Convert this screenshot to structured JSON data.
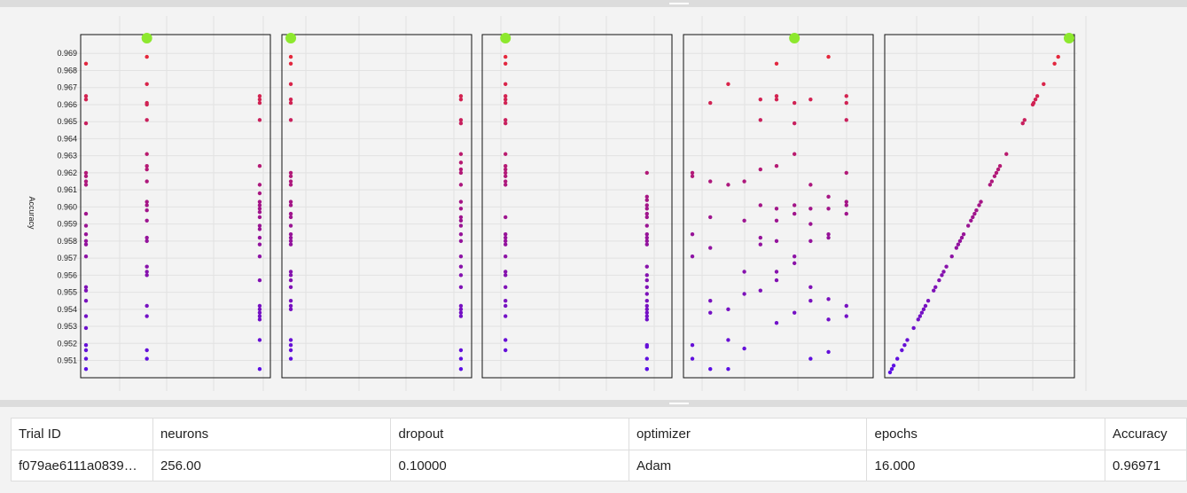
{
  "chart_data": {
    "type": "scatter",
    "ylabel": "Accuracy",
    "ylim": [
      0.9503,
      0.97
    ],
    "yticks": [
      "0.951",
      "0.952",
      "0.953",
      "0.954",
      "0.955",
      "0.956",
      "0.957",
      "0.958",
      "0.959",
      "0.960",
      "0.961",
      "0.962",
      "0.963",
      "0.964",
      "0.965",
      "0.966",
      "0.967",
      "0.968",
      "0.969"
    ],
    "color_scale": {
      "low": "#5a0ee6",
      "mid": "#a0148c",
      "high": "#e6283a"
    },
    "best_point_color": "#8de82e",
    "best_accuracy": 0.96971,
    "accuracy_values": [
      0.9688,
      0.9684,
      0.9672,
      0.9665,
      0.9663,
      0.9661,
      0.966,
      0.9651,
      0.9649,
      0.9631,
      0.9624,
      0.9622,
      0.962,
      0.9618,
      0.9615,
      0.9613,
      0.9603,
      0.9601,
      0.9598,
      0.9596,
      0.9594,
      0.9592,
      0.9589,
      0.9584,
      0.9582,
      0.958,
      0.9578,
      0.9576,
      0.9571,
      0.9565,
      0.9562,
      0.956,
      0.9557,
      0.9553,
      0.9551,
      0.9545,
      0.9542,
      0.954,
      0.9538,
      0.9536,
      0.9534,
      0.9529,
      0.9522,
      0.9519,
      0.9516,
      0.9511,
      0.9507,
      0.9505,
      0.9503
    ],
    "panels": [
      {
        "param": "neurons",
        "points": [
          [
            0.0,
            0.9684
          ],
          [
            0.0,
            0.9665
          ],
          [
            0.0,
            0.9663
          ],
          [
            0.0,
            0.9649
          ],
          [
            0.0,
            0.962
          ],
          [
            0.0,
            0.9618
          ],
          [
            0.0,
            0.9615
          ],
          [
            0.0,
            0.9613
          ],
          [
            0.0,
            0.9596
          ],
          [
            0.0,
            0.9589
          ],
          [
            0.0,
            0.9584
          ],
          [
            0.0,
            0.958
          ],
          [
            0.0,
            0.9578
          ],
          [
            0.0,
            0.9571
          ],
          [
            0.0,
            0.9553
          ],
          [
            0.0,
            0.9551
          ],
          [
            0.0,
            0.9545
          ],
          [
            0.0,
            0.9536
          ],
          [
            0.0,
            0.9529
          ],
          [
            0.0,
            0.9519
          ],
          [
            0.0,
            0.9516
          ],
          [
            0.0,
            0.9511
          ],
          [
            0.0,
            0.9505
          ],
          [
            0.34,
            0.9688
          ],
          [
            0.34,
            0.9672
          ],
          [
            0.34,
            0.9661
          ],
          [
            0.34,
            0.966
          ],
          [
            0.34,
            0.9651
          ],
          [
            0.34,
            0.9631
          ],
          [
            0.34,
            0.9624
          ],
          [
            0.34,
            0.9622
          ],
          [
            0.34,
            0.9615
          ],
          [
            0.34,
            0.9603
          ],
          [
            0.34,
            0.9601
          ],
          [
            0.34,
            0.9598
          ],
          [
            0.34,
            0.9592
          ],
          [
            0.34,
            0.9582
          ],
          [
            0.34,
            0.958
          ],
          [
            0.34,
            0.9565
          ],
          [
            0.34,
            0.9562
          ],
          [
            0.34,
            0.956
          ],
          [
            0.34,
            0.9542
          ],
          [
            0.34,
            0.9536
          ],
          [
            0.34,
            0.9516
          ],
          [
            0.34,
            0.9511
          ],
          [
            0.97,
            0.9665
          ],
          [
            0.97,
            0.9663
          ],
          [
            0.97,
            0.9661
          ],
          [
            0.97,
            0.9651
          ],
          [
            0.97,
            0.9624
          ],
          [
            0.97,
            0.9613
          ],
          [
            0.97,
            0.9608
          ],
          [
            0.97,
            0.9603
          ],
          [
            0.97,
            0.9601
          ],
          [
            0.97,
            0.9599
          ],
          [
            0.97,
            0.9597
          ],
          [
            0.97,
            0.9594
          ],
          [
            0.97,
            0.9589
          ],
          [
            0.97,
            0.9587
          ],
          [
            0.97,
            0.9582
          ],
          [
            0.97,
            0.9578
          ],
          [
            0.97,
            0.9571
          ],
          [
            0.97,
            0.9557
          ],
          [
            0.97,
            0.9542
          ],
          [
            0.97,
            0.954
          ],
          [
            0.97,
            0.9538
          ],
          [
            0.97,
            0.9536
          ],
          [
            0.97,
            0.9534
          ],
          [
            0.97,
            0.9522
          ],
          [
            0.97,
            0.9505
          ]
        ],
        "best": [
          0.34,
          0.96971
        ]
      },
      {
        "param": "dropout",
        "points": [
          [
            0.02,
            0.9688
          ],
          [
            0.02,
            0.9684
          ],
          [
            0.02,
            0.9672
          ],
          [
            0.02,
            0.9663
          ],
          [
            0.02,
            0.9661
          ],
          [
            0.02,
            0.9651
          ],
          [
            0.02,
            0.962
          ],
          [
            0.02,
            0.9618
          ],
          [
            0.02,
            0.9615
          ],
          [
            0.02,
            0.9613
          ],
          [
            0.02,
            0.9603
          ],
          [
            0.02,
            0.9601
          ],
          [
            0.02,
            0.9596
          ],
          [
            0.02,
            0.9594
          ],
          [
            0.02,
            0.9589
          ],
          [
            0.02,
            0.9584
          ],
          [
            0.02,
            0.9582
          ],
          [
            0.02,
            0.958
          ],
          [
            0.02,
            0.9578
          ],
          [
            0.02,
            0.9562
          ],
          [
            0.02,
            0.956
          ],
          [
            0.02,
            0.9557
          ],
          [
            0.02,
            0.9553
          ],
          [
            0.02,
            0.9545
          ],
          [
            0.02,
            0.9542
          ],
          [
            0.02,
            0.954
          ],
          [
            0.02,
            0.9522
          ],
          [
            0.02,
            0.9519
          ],
          [
            0.02,
            0.9516
          ],
          [
            0.02,
            0.9511
          ],
          [
            0.97,
            0.9665
          ],
          [
            0.97,
            0.9663
          ],
          [
            0.97,
            0.9651
          ],
          [
            0.97,
            0.9649
          ],
          [
            0.97,
            0.9631
          ],
          [
            0.97,
            0.9626
          ],
          [
            0.97,
            0.9622
          ],
          [
            0.97,
            0.962
          ],
          [
            0.97,
            0.9613
          ],
          [
            0.97,
            0.9603
          ],
          [
            0.97,
            0.9599
          ],
          [
            0.97,
            0.9594
          ],
          [
            0.97,
            0.9592
          ],
          [
            0.97,
            0.9589
          ],
          [
            0.97,
            0.9584
          ],
          [
            0.97,
            0.958
          ],
          [
            0.97,
            0.9571
          ],
          [
            0.97,
            0.9565
          ],
          [
            0.97,
            0.956
          ],
          [
            0.97,
            0.9553
          ],
          [
            0.97,
            0.9542
          ],
          [
            0.97,
            0.954
          ],
          [
            0.97,
            0.9538
          ],
          [
            0.97,
            0.9536
          ],
          [
            0.97,
            0.9516
          ],
          [
            0.97,
            0.9511
          ],
          [
            0.97,
            0.9505
          ]
        ],
        "best": [
          0.02,
          0.96971
        ]
      },
      {
        "param": "optimizer",
        "points": [
          [
            0.1,
            0.9688
          ],
          [
            0.1,
            0.9684
          ],
          [
            0.1,
            0.9672
          ],
          [
            0.1,
            0.9665
          ],
          [
            0.1,
            0.9663
          ],
          [
            0.1,
            0.9661
          ],
          [
            0.1,
            0.9651
          ],
          [
            0.1,
            0.9649
          ],
          [
            0.1,
            0.9631
          ],
          [
            0.1,
            0.9624
          ],
          [
            0.1,
            0.9622
          ],
          [
            0.1,
            0.962
          ],
          [
            0.1,
            0.9618
          ],
          [
            0.1,
            0.9615
          ],
          [
            0.1,
            0.9613
          ],
          [
            0.1,
            0.9594
          ],
          [
            0.1,
            0.9584
          ],
          [
            0.1,
            0.9582
          ],
          [
            0.1,
            0.958
          ],
          [
            0.1,
            0.9578
          ],
          [
            0.1,
            0.9571
          ],
          [
            0.1,
            0.9562
          ],
          [
            0.1,
            0.956
          ],
          [
            0.1,
            0.9553
          ],
          [
            0.1,
            0.9545
          ],
          [
            0.1,
            0.9542
          ],
          [
            0.1,
            0.9536
          ],
          [
            0.1,
            0.9522
          ],
          [
            0.1,
            0.9516
          ],
          [
            0.89,
            0.962
          ],
          [
            0.89,
            0.9606
          ],
          [
            0.89,
            0.9604
          ],
          [
            0.89,
            0.9601
          ],
          [
            0.89,
            0.9599
          ],
          [
            0.89,
            0.9596
          ],
          [
            0.89,
            0.9594
          ],
          [
            0.89,
            0.9589
          ],
          [
            0.89,
            0.9584
          ],
          [
            0.89,
            0.9582
          ],
          [
            0.89,
            0.958
          ],
          [
            0.89,
            0.9578
          ],
          [
            0.89,
            0.9565
          ],
          [
            0.89,
            0.956
          ],
          [
            0.89,
            0.9557
          ],
          [
            0.89,
            0.9553
          ],
          [
            0.89,
            0.9549
          ],
          [
            0.89,
            0.9545
          ],
          [
            0.89,
            0.9542
          ],
          [
            0.89,
            0.954
          ],
          [
            0.89,
            0.9538
          ],
          [
            0.89,
            0.9536
          ],
          [
            0.89,
            0.9534
          ],
          [
            0.89,
            0.9519
          ],
          [
            0.89,
            0.9518
          ],
          [
            0.89,
            0.9511
          ],
          [
            0.89,
            0.9505
          ],
          [
            0.89,
            0.9505
          ]
        ],
        "best": [
          0.1,
          0.96971
        ]
      },
      {
        "param": "epochs",
        "points": [
          [
            0.02,
            0.962
          ],
          [
            0.02,
            0.9618
          ],
          [
            0.02,
            0.9584
          ],
          [
            0.02,
            0.9571
          ],
          [
            0.02,
            0.9519
          ],
          [
            0.02,
            0.9511
          ],
          [
            0.12,
            0.9661
          ],
          [
            0.12,
            0.9615
          ],
          [
            0.12,
            0.9594
          ],
          [
            0.12,
            0.9576
          ],
          [
            0.12,
            0.9545
          ],
          [
            0.12,
            0.9538
          ],
          [
            0.12,
            0.9505
          ],
          [
            0.22,
            0.9672
          ],
          [
            0.22,
            0.9613
          ],
          [
            0.22,
            0.954
          ],
          [
            0.22,
            0.9522
          ],
          [
            0.22,
            0.9505
          ],
          [
            0.31,
            0.9615
          ],
          [
            0.31,
            0.9592
          ],
          [
            0.31,
            0.9562
          ],
          [
            0.31,
            0.9549
          ],
          [
            0.31,
            0.9517
          ],
          [
            0.4,
            0.9663
          ],
          [
            0.4,
            0.9651
          ],
          [
            0.4,
            0.9622
          ],
          [
            0.4,
            0.9601
          ],
          [
            0.4,
            0.9582
          ],
          [
            0.4,
            0.9578
          ],
          [
            0.4,
            0.9551
          ],
          [
            0.49,
            0.9684
          ],
          [
            0.49,
            0.9665
          ],
          [
            0.49,
            0.9663
          ],
          [
            0.49,
            0.9624
          ],
          [
            0.49,
            0.9599
          ],
          [
            0.49,
            0.9592
          ],
          [
            0.49,
            0.958
          ],
          [
            0.49,
            0.9562
          ],
          [
            0.49,
            0.9557
          ],
          [
            0.49,
            0.9532
          ],
          [
            0.59,
            0.9661
          ],
          [
            0.59,
            0.9649
          ],
          [
            0.59,
            0.9631
          ],
          [
            0.59,
            0.9601
          ],
          [
            0.59,
            0.9596
          ],
          [
            0.59,
            0.9571
          ],
          [
            0.59,
            0.9567
          ],
          [
            0.59,
            0.9538
          ],
          [
            0.68,
            0.9663
          ],
          [
            0.68,
            0.9613
          ],
          [
            0.68,
            0.9599
          ],
          [
            0.68,
            0.959
          ],
          [
            0.68,
            0.958
          ],
          [
            0.68,
            0.9553
          ],
          [
            0.68,
            0.9545
          ],
          [
            0.68,
            0.9511
          ],
          [
            0.78,
            0.9688
          ],
          [
            0.78,
            0.9606
          ],
          [
            0.78,
            0.9599
          ],
          [
            0.78,
            0.9584
          ],
          [
            0.78,
            0.9582
          ],
          [
            0.78,
            0.9546
          ],
          [
            0.78,
            0.9534
          ],
          [
            0.78,
            0.9515
          ],
          [
            0.88,
            0.9665
          ],
          [
            0.88,
            0.9661
          ],
          [
            0.88,
            0.9651
          ],
          [
            0.88,
            0.962
          ],
          [
            0.88,
            0.9603
          ],
          [
            0.88,
            0.9601
          ],
          [
            0.88,
            0.9596
          ],
          [
            0.88,
            0.9542
          ],
          [
            0.88,
            0.9536
          ]
        ],
        "best": [
          0.59,
          0.96971
        ]
      },
      {
        "param": "Accuracy",
        "points": "diagonal",
        "best": [
          1.0,
          0.96971
        ]
      }
    ]
  },
  "table": {
    "headers": [
      "Trial ID",
      "neurons",
      "dropout",
      "optimizer",
      "epochs",
      "Accuracy"
    ],
    "row": [
      "f079ae6111a0839…",
      "256.00",
      "0.10000",
      "Adam",
      "16.000",
      "0.96971"
    ]
  }
}
